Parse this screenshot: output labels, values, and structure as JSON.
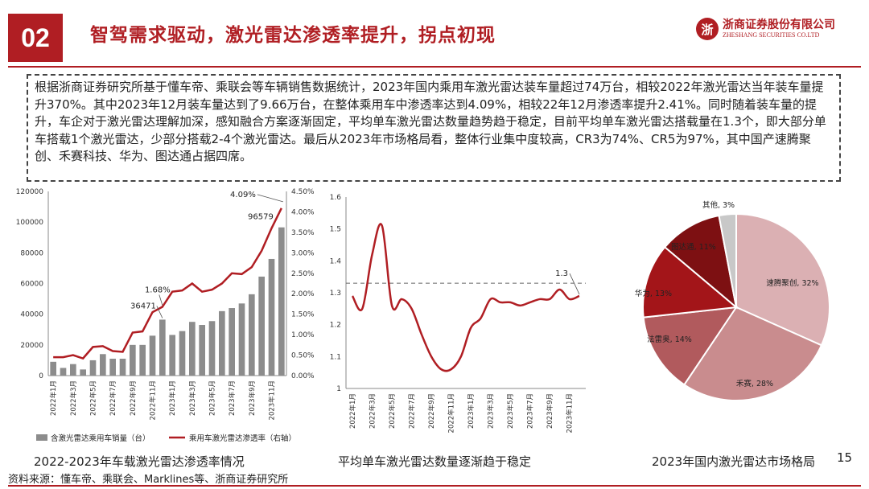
{
  "header": {
    "section_number": "02",
    "title": "智驾需求驱动，激光雷达渗透率提升，拐点初现",
    "logo_mark": "浙",
    "logo_cn": "浙商证券股份有限公司",
    "logo_en": "ZHESHANG SECURITIES CO.LTD"
  },
  "description": "根据浙商证券研究所基于懂车帝、乘联会等车辆销售数据统计，2023年国内乘用车激光雷达装车量超过74万台，相较2022年激光雷达当年装车量提升370%。其中2023年12月装车量达到了9.66万台，在整体乘用车中渗透率达到4.09%，相较22年12月渗透率提升2.41%。同时随着装车量的提升，车企对于激光雷达理解加深，感知融合方案逐渐固定，平均单车激光雷达数量趋势趋于稳定，目前平均单车激光雷达搭载量在1.3个，即大部分单车搭载1个激光雷达，少部分搭载2-4个激光雷达。最后从2023年市场格局看，整体行业集中度较高，CR3为74%、CR5为97%，其中国产速腾聚创、禾赛科技、华为、图达通占据四席。",
  "chart_data": [
    {
      "type": "bar",
      "categories": [
        "2022年1月",
        "2022年2月",
        "2022年3月",
        "2022年4月",
        "2022年5月",
        "2022年6月",
        "2022年7月",
        "2022年8月",
        "2022年9月",
        "2022年10月",
        "2022年11月",
        "2022年12月",
        "2023年1月",
        "2023年2月",
        "2023年3月",
        "2023年4月",
        "2023年5月",
        "2023年6月",
        "2023年7月",
        "2023年8月",
        "2023年9月",
        "2023年10月",
        "2023年11月",
        "2023年12月"
      ],
      "tick_labels": [
        "2022年1月",
        "2022年3月",
        "2022年5月",
        "2022年7月",
        "2022年9月",
        "2022年11月",
        "2023年1月",
        "2023年3月",
        "2023年5月",
        "2023年7月",
        "2023年9月",
        "2023年11月"
      ],
      "series": [
        {
          "name": "含激光雷达乘用车销量（台）",
          "type": "bar",
          "color": "#8c8c8c",
          "values": [
            9000,
            5000,
            7500,
            4000,
            10000,
            14000,
            11000,
            11000,
            20000,
            20000,
            26000,
            36471,
            26500,
            29000,
            35000,
            33000,
            35500,
            42000,
            44000,
            47000,
            53000,
            64500,
            76000,
            96579
          ]
        },
        {
          "name": "乘用车激光雷达渗透率（右轴）",
          "type": "line",
          "color": "#b01e23",
          "values": [
            0.45,
            0.45,
            0.5,
            0.42,
            0.7,
            0.72,
            0.6,
            0.58,
            1.05,
            1.08,
            1.55,
            1.68,
            2.05,
            2.08,
            2.25,
            2.05,
            2.1,
            2.25,
            2.5,
            2.48,
            2.65,
            3.05,
            3.6,
            4.09
          ]
        }
      ],
      "y_ticks": [
        "0",
        "20000",
        "40000",
        "60000",
        "80000",
        "100000",
        "120000"
      ],
      "y_right_ticks": [
        "0.00%",
        "0.50%",
        "1.00%",
        "1.50%",
        "2.00%",
        "2.50%",
        "3.00%",
        "3.50%",
        "4.00%",
        "4.50%"
      ],
      "ylim": [
        0,
        120000
      ],
      "ylim_right": [
        0,
        4.5
      ],
      "annotations": [
        {
          "label": "36471",
          "series": 0,
          "index": 11
        },
        {
          "label": "96579",
          "series": 0,
          "index": 23
        },
        {
          "label": "1.68%",
          "series": 1,
          "index": 11
        },
        {
          "label": "4.09%",
          "series": 1,
          "index": 23
        }
      ],
      "title": "2022-2023年车载激光雷达渗透率情况"
    },
    {
      "type": "line",
      "categories": [
        "2022年1月",
        "2022年2月",
        "2022年3月",
        "2022年4月",
        "2022年5月",
        "2022年6月",
        "2022年7月",
        "2022年8月",
        "2022年9月",
        "2022年10月",
        "2022年11月",
        "2022年12月",
        "2023年1月",
        "2023年2月",
        "2023年3月",
        "2023年4月",
        "2023年5月",
        "2023年6月",
        "2023年7月",
        "2023年8月",
        "2023年9月",
        "2023年10月",
        "2023年11月",
        "2023年12月"
      ],
      "tick_labels": [
        "2022年1月",
        "2022年3月",
        "2022年5月",
        "2022年7月",
        "2022年9月",
        "2022年11月",
        "2023年1月",
        "2023年3月",
        "2023年5月",
        "2023年7月",
        "2023年9月",
        "2023年11月"
      ],
      "values": [
        1.29,
        1.25,
        1.42,
        1.51,
        1.26,
        1.28,
        1.25,
        1.17,
        1.1,
        1.06,
        1.06,
        1.1,
        1.19,
        1.22,
        1.28,
        1.27,
        1.27,
        1.26,
        1.27,
        1.28,
        1.28,
        1.31,
        1.28,
        1.29
      ],
      "y_ticks": [
        "1",
        "1.1",
        "1.2",
        "1.3",
        "1.4",
        "1.5",
        "1.6"
      ],
      "ylim": [
        1,
        1.6
      ],
      "reference_line": 1.33,
      "annotation": "1.3",
      "color": "#b01e23",
      "title": "平均单车激光雷达数量逐渐趋于稳定"
    },
    {
      "type": "pie",
      "slices": [
        {
          "label": "速腾聚创, 32%",
          "value": 32,
          "color": "#dbb0b3"
        },
        {
          "label": "禾赛, 28%",
          "value": 28,
          "color": "#c98c8e"
        },
        {
          "label": "法雷奥, 14%",
          "value": 14,
          "color": "#b15a5d"
        },
        {
          "label": "华为, 13%",
          "value": 13,
          "color": "#a31519"
        },
        {
          "label": "图达通, 11%",
          "value": 11,
          "color": "#7d1012"
        },
        {
          "label": "其他, 3%",
          "value": 3,
          "color": "#c8c8c8"
        }
      ],
      "title": "2023年国内激光雷达市场格局"
    }
  ],
  "footer": {
    "source": "资料来源：懂车帝、乘联会、Marklines等、浙商证券研究所",
    "page": "15"
  }
}
